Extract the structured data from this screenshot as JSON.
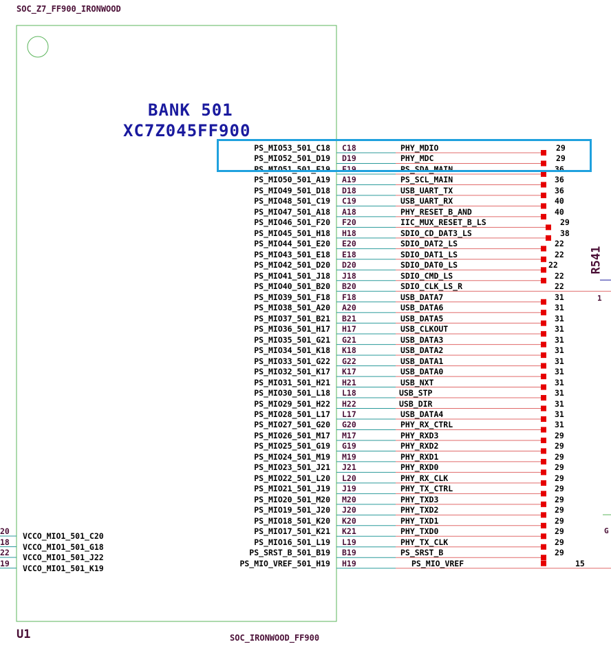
{
  "header": {
    "symbol_ref": "SOC_Z7_FF900_IRONWOOD"
  },
  "part": {
    "bank_title": "BANK 501",
    "device": "XC7Z045FF900",
    "designator": "U1",
    "footer_label": "SOC_IRONWOOD_FF900"
  },
  "right_pins": [
    {
      "pin": "PS_MIO53_501_C18",
      "ball": "C18",
      "net": "PHY_MDIO",
      "page": "29"
    },
    {
      "pin": "PS_MIO52_501_D19",
      "ball": "D19",
      "net": "PHY_MDC",
      "page": "29"
    },
    {
      "pin": "PS_MIO51_501_F19",
      "ball": "F19",
      "net": "PS_SDA_MAIN",
      "page": "36"
    },
    {
      "pin": "PS_MIO50_501_A19",
      "ball": "A19",
      "net": "PS_SCL_MAIN",
      "page": "36"
    },
    {
      "pin": "PS_MIO49_501_D18",
      "ball": "D18",
      "net": "USB_UART_TX",
      "page": "36"
    },
    {
      "pin": "PS_MIO48_501_C19",
      "ball": "C19",
      "net": "USB_UART_RX",
      "page": "40"
    },
    {
      "pin": "PS_MIO47_501_A18",
      "ball": "A18",
      "net": "PHY_RESET_B_AND",
      "page": "40"
    },
    {
      "pin": "PS_MIO46_501_F20",
      "ball": "F20",
      "net": "IIC_MUX_RESET_B_LS",
      "page": "29"
    },
    {
      "pin": "PS_MIO45_501_H18",
      "ball": "H18",
      "net": "SDIO_CD_DAT3_LS",
      "page": "38"
    },
    {
      "pin": "PS_MIO44_501_E20",
      "ball": "E20",
      "net": "SDIO_DAT2_LS",
      "page": "22"
    },
    {
      "pin": "PS_MIO43_501_E18",
      "ball": "E18",
      "net": "SDIO_DAT1_LS",
      "page": "22"
    },
    {
      "pin": "PS_MIO42_501_D20",
      "ball": "D20",
      "net": "SDIO_DAT0_LS",
      "page": "22"
    },
    {
      "pin": "PS_MIO41_501_J18",
      "ball": "J18",
      "net": "SDIO_CMD_LS",
      "page": "22"
    },
    {
      "pin": "PS_MIO40_501_B20",
      "ball": "B20",
      "net": "SDIO_CLK_LS_R",
      "page": "22"
    },
    {
      "pin": "PS_MIO39_501_F18",
      "ball": "F18",
      "net": "USB_DATA7",
      "page": "31"
    },
    {
      "pin": "PS_MIO38_501_A20",
      "ball": "A20",
      "net": "USB_DATA6",
      "page": "31"
    },
    {
      "pin": "PS_MIO37_501_B21",
      "ball": "B21",
      "net": "USB_DATA5",
      "page": "31"
    },
    {
      "pin": "PS_MIO36_501_H17",
      "ball": "H17",
      "net": "USB_CLKOUT",
      "page": "31"
    },
    {
      "pin": "PS_MIO35_501_G21",
      "ball": "G21",
      "net": "USB_DATA3",
      "page": "31"
    },
    {
      "pin": "PS_MIO34_501_K18",
      "ball": "K18",
      "net": "USB_DATA2",
      "page": "31"
    },
    {
      "pin": "PS_MIO33_501_G22",
      "ball": "G22",
      "net": "USB_DATA1",
      "page": "31"
    },
    {
      "pin": "PS_MIO32_501_K17",
      "ball": "K17",
      "net": "USB_DATA0",
      "page": "31"
    },
    {
      "pin": "PS_MIO31_501_H21",
      "ball": "H21",
      "net": "USB_NXT",
      "page": "31"
    },
    {
      "pin": "PS_MIO30_501_L18",
      "ball": "L18",
      "net": "USB_STP",
      "page": "31"
    },
    {
      "pin": "PS_MIO29_501_H22",
      "ball": "H22",
      "net": "USB_DIR",
      "page": "31"
    },
    {
      "pin": "PS_MIO28_501_L17",
      "ball": "L17",
      "net": "USB_DATA4",
      "page": "31"
    },
    {
      "pin": "PS_MIO27_501_G20",
      "ball": "G20",
      "net": "PHY_RX_CTRL",
      "page": "31"
    },
    {
      "pin": "PS_MIO26_501_M17",
      "ball": "M17",
      "net": "PHY_RXD3",
      "page": "29"
    },
    {
      "pin": "PS_MIO25_501_G19",
      "ball": "G19",
      "net": "PHY_RXD2",
      "page": "29"
    },
    {
      "pin": "PS_MIO24_501_M19",
      "ball": "M19",
      "net": "PHY_RXD1",
      "page": "29"
    },
    {
      "pin": "PS_MIO23_501_J21",
      "ball": "J21",
      "net": "PHY_RXD0",
      "page": "29"
    },
    {
      "pin": "PS_MIO22_501_L20",
      "ball": "L20",
      "net": "PHY_RX_CLK",
      "page": "29"
    },
    {
      "pin": "PS_MIO21_501_J19",
      "ball": "J19",
      "net": "PHY_TX_CTRL",
      "page": "29"
    },
    {
      "pin": "PS_MIO20_501_M20",
      "ball": "M20",
      "net": "PHY_TXD3",
      "page": "29"
    },
    {
      "pin": "PS_MIO19_501_J20",
      "ball": "J20",
      "net": "PHY_TXD2",
      "page": "29"
    },
    {
      "pin": "PS_MIO18_501_K20",
      "ball": "K20",
      "net": "PHY_TXD1",
      "page": "29"
    },
    {
      "pin": "PS_MIO17_501_K21",
      "ball": "K21",
      "net": "PHY_TXD0",
      "page": "29"
    },
    {
      "pin": "PS_MIO16_501_L19",
      "ball": "L19",
      "net": "PHY_TX_CLK",
      "page": "29"
    },
    {
      "pin": "PS_SRST_B_501_B19",
      "ball": "B19",
      "net": "PS_SRST_B",
      "page": "29"
    },
    {
      "pin": "PS_MIO_VREF_501_H19",
      "ball": "H19",
      "net": "PS_MIO_VREF",
      "page": "15"
    }
  ],
  "left_pins": [
    {
      "outer": "20",
      "pin": "VCCO_MIO1_501_C20"
    },
    {
      "outer": "18",
      "pin": "VCCO_MIO1_501_G18"
    },
    {
      "outer": "22",
      "pin": "VCCO_MIO1_501_J22"
    },
    {
      "outer": "19",
      "pin": "VCCO_MIO1_501_K19"
    }
  ],
  "edge_parts": {
    "resistor_ref": "R541",
    "resistor_pin": "1",
    "partial_label": "G"
  },
  "colors": {
    "outline": "#5bb55b",
    "wire": "#e06a6a",
    "highlight": "#1fa1de",
    "marker": "#e60000",
    "title": "#1a1a9e",
    "label": "#4a0f36"
  }
}
